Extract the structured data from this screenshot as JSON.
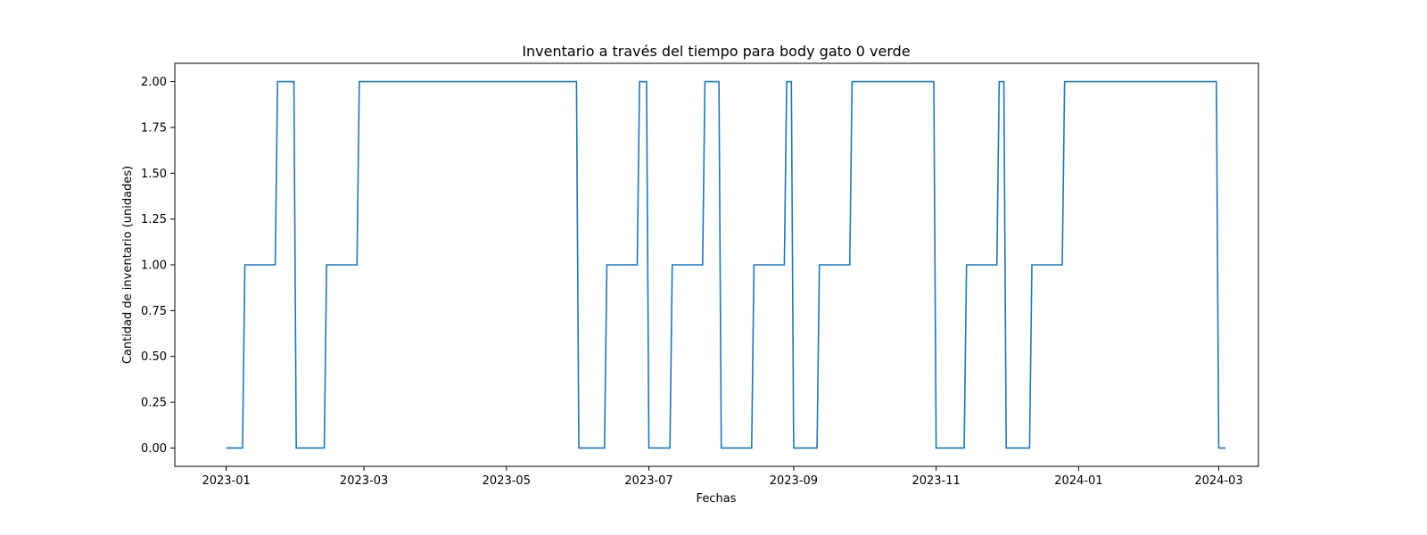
{
  "chart_data": {
    "type": "line",
    "title": "Inventario a través del tiempo para body gato 0 verde",
    "xlabel": "Fechas",
    "ylabel": "Cantidad de inventario (unidades)",
    "x_axis_type": "date",
    "xlim": [
      "2022-12-10",
      "2024-03-18"
    ],
    "ylim": [
      -0.1,
      2.1
    ],
    "x_ticks": [
      "2023-01",
      "2023-03",
      "2023-05",
      "2023-07",
      "2023-09",
      "2023-11",
      "2024-01",
      "2024-03"
    ],
    "y_ticks": [
      0.0,
      0.25,
      0.5,
      0.75,
      1.0,
      1.25,
      1.5,
      1.75,
      2.0
    ],
    "y_tick_labels": [
      "0.00",
      "0.25",
      "0.50",
      "0.75",
      "1.00",
      "1.25",
      "1.50",
      "1.75",
      "2.00"
    ],
    "grid": false,
    "line_color": "#1f77b4",
    "series": [
      {
        "x": [
          "2023-01-01",
          "2023-01-08",
          "2023-01-09",
          "2023-01-22",
          "2023-01-23",
          "2023-01-30",
          "2023-01-31",
          "2023-02-12",
          "2023-02-13",
          "2023-02-26",
          "2023-02-27",
          "2023-05-31",
          "2023-06-01",
          "2023-06-12",
          "2023-06-13",
          "2023-06-26",
          "2023-06-27",
          "2023-06-30",
          "2023-07-01",
          "2023-07-10",
          "2023-07-11",
          "2023-07-24",
          "2023-07-25",
          "2023-07-31",
          "2023-08-01",
          "2023-08-14",
          "2023-08-15",
          "2023-08-28",
          "2023-08-29",
          "2023-08-31",
          "2023-09-01",
          "2023-09-11",
          "2023-09-12",
          "2023-09-25",
          "2023-09-26",
          "2023-10-31",
          "2023-11-01",
          "2023-11-13",
          "2023-11-14",
          "2023-11-27",
          "2023-11-28",
          "2023-11-30",
          "2023-12-01",
          "2023-12-11",
          "2023-12-12",
          "2023-12-25",
          "2023-12-26",
          "2024-02-29",
          "2024-03-01",
          "2024-03-04"
        ],
        "y": [
          0,
          0,
          1,
          1,
          2,
          2,
          0,
          0,
          1,
          1,
          2,
          2,
          0,
          0,
          1,
          1,
          2,
          2,
          0,
          0,
          1,
          1,
          2,
          2,
          0,
          0,
          1,
          1,
          2,
          2,
          0,
          0,
          1,
          1,
          2,
          2,
          0,
          0,
          1,
          1,
          2,
          2,
          0,
          0,
          1,
          1,
          2,
          2,
          0,
          0
        ]
      }
    ]
  }
}
